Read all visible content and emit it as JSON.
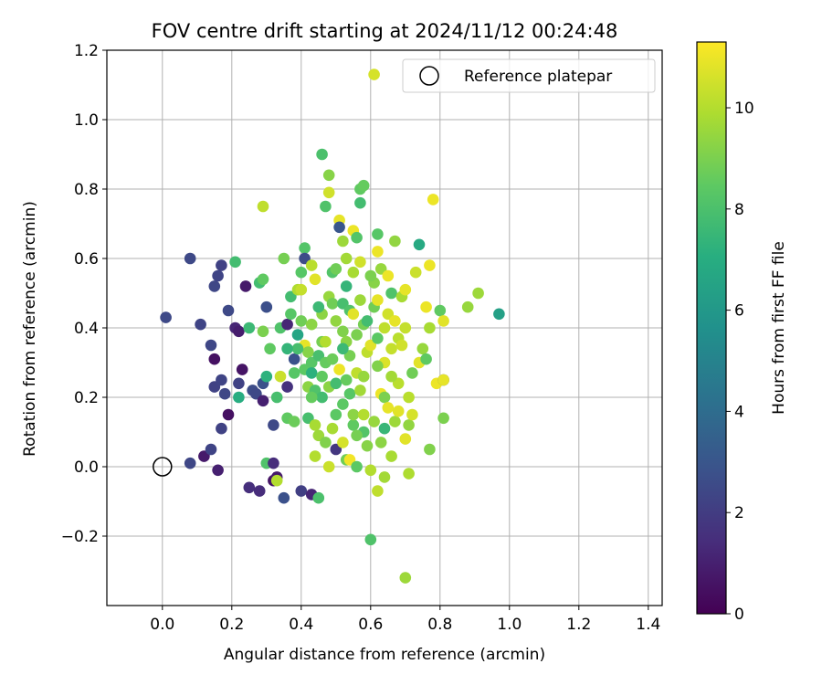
{
  "chart_data": {
    "type": "scatter",
    "title": "FOV centre drift starting at 2024/11/12 00:24:48",
    "xlabel": "Angular distance from reference (arcmin)",
    "ylabel": "Rotation from reference (arcmin)",
    "xlim": [
      -0.16,
      1.44
    ],
    "ylim": [
      -0.4,
      1.2
    ],
    "xticks": [
      0.0,
      0.2,
      0.4,
      0.6,
      0.8,
      1.0,
      1.2,
      1.4
    ],
    "xtick_labels": [
      "0.0",
      "0.2",
      "0.4",
      "0.6",
      "0.8",
      "1.0",
      "1.2",
      "1.4"
    ],
    "yticks": [
      -0.2,
      0.0,
      0.2,
      0.4,
      0.6,
      0.8,
      1.0,
      1.2
    ],
    "ytick_labels": [
      "−0.2",
      "0.0",
      "0.2",
      "0.4",
      "0.6",
      "0.8",
      "1.0",
      "1.2"
    ],
    "grid": true,
    "legend": {
      "position": "top-right",
      "entries": [
        "Reference platepar"
      ]
    },
    "reference_point": {
      "x": 0.0,
      "y": 0.0
    },
    "colorbar": {
      "label": "Hours from first FF file",
      "range": [
        0,
        11.3
      ],
      "ticks": [
        0,
        2,
        4,
        6,
        8,
        10
      ],
      "tick_labels": [
        "0",
        "2",
        "4",
        "6",
        "8",
        "10"
      ],
      "colormap": "viridis"
    },
    "points": [
      {
        "x": 0.01,
        "y": 0.43,
        "h": 2.5
      },
      {
        "x": 0.08,
        "y": 0.6,
        "h": 2.5
      },
      {
        "x": 0.11,
        "y": 0.41,
        "h": 2.3
      },
      {
        "x": 0.08,
        "y": 0.01,
        "h": 2.4
      },
      {
        "x": 0.12,
        "y": 0.03,
        "h": 0.8
      },
      {
        "x": 0.14,
        "y": 0.05,
        "h": 2.3
      },
      {
        "x": 0.16,
        "y": -0.01,
        "h": 1.0
      },
      {
        "x": 0.14,
        "y": 0.35,
        "h": 2.4
      },
      {
        "x": 0.15,
        "y": 0.31,
        "h": 0.5
      },
      {
        "x": 0.15,
        "y": 0.23,
        "h": 2.2
      },
      {
        "x": 0.17,
        "y": 0.25,
        "h": 2.3
      },
      {
        "x": 0.17,
        "y": 0.11,
        "h": 2.2
      },
      {
        "x": 0.15,
        "y": 0.52,
        "h": 2.4
      },
      {
        "x": 0.16,
        "y": 0.55,
        "h": 2.3
      },
      {
        "x": 0.17,
        "y": 0.58,
        "h": 2.2
      },
      {
        "x": 0.19,
        "y": 0.45,
        "h": 2.5
      },
      {
        "x": 0.18,
        "y": 0.21,
        "h": 2.4
      },
      {
        "x": 0.19,
        "y": 0.15,
        "h": 0.5
      },
      {
        "x": 0.21,
        "y": 0.4,
        "h": 1.2
      },
      {
        "x": 0.21,
        "y": 0.59,
        "h": 7.8
      },
      {
        "x": 0.22,
        "y": 0.24,
        "h": 2.2
      },
      {
        "x": 0.22,
        "y": 0.39,
        "h": 0.9
      },
      {
        "x": 0.23,
        "y": 0.28,
        "h": 0.6
      },
      {
        "x": 0.22,
        "y": 0.2,
        "h": 7.0
      },
      {
        "x": 0.24,
        "y": 0.52,
        "h": 0.8
      },
      {
        "x": 0.25,
        "y": 0.4,
        "h": 7.6
      },
      {
        "x": 0.26,
        "y": 0.22,
        "h": 2.6
      },
      {
        "x": 0.25,
        "y": -0.06,
        "h": 1.5
      },
      {
        "x": 0.27,
        "y": 0.21,
        "h": 2.5
      },
      {
        "x": 0.28,
        "y": 0.53,
        "h": 7.8
      },
      {
        "x": 0.28,
        "y": -0.07,
        "h": 1.4
      },
      {
        "x": 0.29,
        "y": 0.19,
        "h": 1.0
      },
      {
        "x": 0.29,
        "y": 0.24,
        "h": 2.8
      },
      {
        "x": 0.29,
        "y": 0.39,
        "h": 9.0
      },
      {
        "x": 0.29,
        "y": 0.54,
        "h": 8.5
      },
      {
        "x": 0.29,
        "y": 0.75,
        "h": 10.2
      },
      {
        "x": 0.3,
        "y": 0.46,
        "h": 2.7
      },
      {
        "x": 0.3,
        "y": 0.26,
        "h": 7.2
      },
      {
        "x": 0.3,
        "y": 0.01,
        "h": 8.1
      },
      {
        "x": 0.31,
        "y": 0.34,
        "h": 8.5
      },
      {
        "x": 0.32,
        "y": 0.12,
        "h": 2.5
      },
      {
        "x": 0.32,
        "y": 0.01,
        "h": 1.4
      },
      {
        "x": 0.32,
        "y": -0.04,
        "h": 0.6
      },
      {
        "x": 0.33,
        "y": -0.03,
        "h": 0.8
      },
      {
        "x": 0.33,
        "y": -0.04,
        "h": 10.0
      },
      {
        "x": 0.33,
        "y": 0.2,
        "h": 7.9
      },
      {
        "x": 0.34,
        "y": 0.26,
        "h": 10.4
      },
      {
        "x": 0.34,
        "y": 0.4,
        "h": 8.1
      },
      {
        "x": 0.35,
        "y": -0.09,
        "h": 2.8
      },
      {
        "x": 0.35,
        "y": 0.6,
        "h": 8.9
      },
      {
        "x": 0.36,
        "y": 0.41,
        "h": 1.2
      },
      {
        "x": 0.36,
        "y": 0.14,
        "h": 8.5
      },
      {
        "x": 0.36,
        "y": 0.23,
        "h": 1.6
      },
      {
        "x": 0.37,
        "y": 0.44,
        "h": 8.3
      },
      {
        "x": 0.37,
        "y": 0.49,
        "h": 7.8
      },
      {
        "x": 0.38,
        "y": 0.31,
        "h": 2.8
      },
      {
        "x": 0.38,
        "y": 0.27,
        "h": 8.3
      },
      {
        "x": 0.39,
        "y": 0.51,
        "h": 9.9
      },
      {
        "x": 0.39,
        "y": 0.38,
        "h": 6.6
      },
      {
        "x": 0.4,
        "y": 0.42,
        "h": 8.8
      },
      {
        "x": 0.4,
        "y": 0.56,
        "h": 8.3
      },
      {
        "x": 0.4,
        "y": 0.51,
        "h": 10.3
      },
      {
        "x": 0.4,
        "y": -0.07,
        "h": 2.1
      },
      {
        "x": 0.41,
        "y": 0.35,
        "h": 10.9
      },
      {
        "x": 0.41,
        "y": 0.63,
        "h": 8.2
      },
      {
        "x": 0.41,
        "y": 0.6,
        "h": 2.6
      },
      {
        "x": 0.41,
        "y": 0.28,
        "h": 8.4
      },
      {
        "x": 0.42,
        "y": 0.14,
        "h": 7.9
      },
      {
        "x": 0.42,
        "y": 0.23,
        "h": 9.3
      },
      {
        "x": 0.42,
        "y": 0.33,
        "h": 9.2
      },
      {
        "x": 0.43,
        "y": 0.3,
        "h": 8.3
      },
      {
        "x": 0.43,
        "y": -0.08,
        "h": 1.2
      },
      {
        "x": 0.43,
        "y": 0.58,
        "h": 10.1
      },
      {
        "x": 0.43,
        "y": 0.41,
        "h": 9.3
      },
      {
        "x": 0.43,
        "y": 0.27,
        "h": 7.2
      },
      {
        "x": 0.44,
        "y": 0.03,
        "h": 10.0
      },
      {
        "x": 0.44,
        "y": 0.12,
        "h": 9.8
      },
      {
        "x": 0.44,
        "y": 0.22,
        "h": 8.1
      },
      {
        "x": 0.44,
        "y": 0.54,
        "h": 10.8
      },
      {
        "x": 0.45,
        "y": 0.09,
        "h": 9.6
      },
      {
        "x": 0.45,
        "y": -0.09,
        "h": 8.0
      },
      {
        "x": 0.45,
        "y": 0.32,
        "h": 7.9
      },
      {
        "x": 0.46,
        "y": 0.2,
        "h": 7.8
      },
      {
        "x": 0.46,
        "y": 0.36,
        "h": 8.9
      },
      {
        "x": 0.46,
        "y": 0.44,
        "h": 9.3
      },
      {
        "x": 0.46,
        "y": 0.9,
        "h": 8.0
      },
      {
        "x": 0.47,
        "y": 0.75,
        "h": 8.1
      },
      {
        "x": 0.47,
        "y": 0.07,
        "h": 9.1
      },
      {
        "x": 0.47,
        "y": 0.3,
        "h": 8.6
      },
      {
        "x": 0.48,
        "y": 0.0,
        "h": 10.4
      },
      {
        "x": 0.48,
        "y": 0.23,
        "h": 9.3
      },
      {
        "x": 0.48,
        "y": 0.49,
        "h": 9.5
      },
      {
        "x": 0.48,
        "y": 0.84,
        "h": 9.2
      },
      {
        "x": 0.48,
        "y": 0.79,
        "h": 10.5
      },
      {
        "x": 0.49,
        "y": 0.31,
        "h": 8.7
      },
      {
        "x": 0.49,
        "y": 0.56,
        "h": 8.2
      },
      {
        "x": 0.49,
        "y": 0.47,
        "h": 8.8
      },
      {
        "x": 0.5,
        "y": 0.42,
        "h": 9.4
      },
      {
        "x": 0.5,
        "y": 0.15,
        "h": 8.4
      },
      {
        "x": 0.5,
        "y": 0.24,
        "h": 7.8
      },
      {
        "x": 0.5,
        "y": 0.05,
        "h": 1.8
      },
      {
        "x": 0.51,
        "y": 0.71,
        "h": 10.9
      },
      {
        "x": 0.51,
        "y": 0.28,
        "h": 11.0
      },
      {
        "x": 0.51,
        "y": 0.69,
        "h": 3.0
      },
      {
        "x": 0.52,
        "y": 0.65,
        "h": 9.6
      },
      {
        "x": 0.52,
        "y": 0.47,
        "h": 7.9
      },
      {
        "x": 0.52,
        "y": 0.39,
        "h": 9.1
      },
      {
        "x": 0.52,
        "y": 0.18,
        "h": 8.4
      },
      {
        "x": 0.52,
        "y": 0.07,
        "h": 10.6
      },
      {
        "x": 0.53,
        "y": 0.36,
        "h": 9.3
      },
      {
        "x": 0.53,
        "y": 0.25,
        "h": 8.6
      },
      {
        "x": 0.53,
        "y": 0.02,
        "h": 8.8
      },
      {
        "x": 0.53,
        "y": 0.6,
        "h": 9.7
      },
      {
        "x": 0.54,
        "y": 0.45,
        "h": 8.1
      },
      {
        "x": 0.54,
        "y": 0.32,
        "h": 8.9
      },
      {
        "x": 0.54,
        "y": 0.21,
        "h": 8.3
      },
      {
        "x": 0.54,
        "y": 0.02,
        "h": 11.1
      },
      {
        "x": 0.55,
        "y": 0.68,
        "h": 11.0
      },
      {
        "x": 0.55,
        "y": 0.56,
        "h": 9.8
      },
      {
        "x": 0.55,
        "y": 0.44,
        "h": 10.8
      },
      {
        "x": 0.55,
        "y": 0.12,
        "h": 8.5
      },
      {
        "x": 0.56,
        "y": 0.66,
        "h": 8.2
      },
      {
        "x": 0.56,
        "y": 0.38,
        "h": 9.0
      },
      {
        "x": 0.56,
        "y": 0.27,
        "h": 10.2
      },
      {
        "x": 0.56,
        "y": 0.0,
        "h": 8.4
      },
      {
        "x": 0.57,
        "y": 0.8,
        "h": 8.5
      },
      {
        "x": 0.57,
        "y": 0.76,
        "h": 7.8
      },
      {
        "x": 0.57,
        "y": 0.48,
        "h": 9.6
      },
      {
        "x": 0.57,
        "y": 0.22,
        "h": 9.7
      },
      {
        "x": 0.58,
        "y": 0.81,
        "h": 8.6
      },
      {
        "x": 0.58,
        "y": 0.41,
        "h": 8.9
      },
      {
        "x": 0.58,
        "y": 0.26,
        "h": 9.5
      },
      {
        "x": 0.58,
        "y": 0.1,
        "h": 8.2
      },
      {
        "x": 0.59,
        "y": 0.33,
        "h": 10.2
      },
      {
        "x": 0.59,
        "y": 0.06,
        "h": 9.2
      },
      {
        "x": 0.6,
        "y": -0.21,
        "h": 8.1
      },
      {
        "x": 0.6,
        "y": -0.01,
        "h": 10.0
      },
      {
        "x": 0.6,
        "y": 0.35,
        "h": 10.8
      },
      {
        "x": 0.61,
        "y": 1.13,
        "h": 10.6
      },
      {
        "x": 0.61,
        "y": 0.53,
        "h": 9.2
      },
      {
        "x": 0.61,
        "y": 0.46,
        "h": 8.8
      },
      {
        "x": 0.61,
        "y": 0.13,
        "h": 9.5
      },
      {
        "x": 0.62,
        "y": 0.67,
        "h": 8.3
      },
      {
        "x": 0.62,
        "y": 0.62,
        "h": 11.0
      },
      {
        "x": 0.62,
        "y": 0.37,
        "h": 8.4
      },
      {
        "x": 0.62,
        "y": 0.48,
        "h": 10.9
      },
      {
        "x": 0.62,
        "y": -0.07,
        "h": 10.2
      },
      {
        "x": 0.63,
        "y": 0.21,
        "h": 11.0
      },
      {
        "x": 0.63,
        "y": 0.57,
        "h": 9.5
      },
      {
        "x": 0.63,
        "y": 0.07,
        "h": 9.3
      },
      {
        "x": 0.64,
        "y": 0.4,
        "h": 10.2
      },
      {
        "x": 0.64,
        "y": 0.3,
        "h": 10.7
      },
      {
        "x": 0.64,
        "y": 0.2,
        "h": 9.0
      },
      {
        "x": 0.64,
        "y": -0.03,
        "h": 9.7
      },
      {
        "x": 0.65,
        "y": 0.55,
        "h": 11.0
      },
      {
        "x": 0.65,
        "y": 0.44,
        "h": 10.5
      },
      {
        "x": 0.65,
        "y": 0.17,
        "h": 10.9
      },
      {
        "x": 0.66,
        "y": 0.5,
        "h": 8.1
      },
      {
        "x": 0.66,
        "y": 0.34,
        "h": 10.3
      },
      {
        "x": 0.66,
        "y": 0.03,
        "h": 9.8
      },
      {
        "x": 0.67,
        "y": 0.65,
        "h": 9.4
      },
      {
        "x": 0.67,
        "y": 0.42,
        "h": 10.9
      },
      {
        "x": 0.67,
        "y": 0.13,
        "h": 9.6
      },
      {
        "x": 0.68,
        "y": 0.24,
        "h": 10.1
      },
      {
        "x": 0.68,
        "y": 0.16,
        "h": 10.8
      },
      {
        "x": 0.68,
        "y": 0.37,
        "h": 10.1
      },
      {
        "x": 0.69,
        "y": 0.49,
        "h": 9.8
      },
      {
        "x": 0.69,
        "y": 0.35,
        "h": 10.5
      },
      {
        "x": 0.7,
        "y": -0.32,
        "h": 9.6
      },
      {
        "x": 0.7,
        "y": 0.51,
        "h": 10.9
      },
      {
        "x": 0.7,
        "y": 0.08,
        "h": 10.8
      },
      {
        "x": 0.7,
        "y": 0.4,
        "h": 10.3
      },
      {
        "x": 0.71,
        "y": 0.2,
        "h": 10.1
      },
      {
        "x": 0.71,
        "y": -0.02,
        "h": 9.9
      },
      {
        "x": 0.71,
        "y": 0.12,
        "h": 9.4
      },
      {
        "x": 0.72,
        "y": 0.27,
        "h": 8.8
      },
      {
        "x": 0.73,
        "y": 0.56,
        "h": 10.4
      },
      {
        "x": 0.74,
        "y": 0.64,
        "h": 6.8
      },
      {
        "x": 0.74,
        "y": 0.3,
        "h": 10.8
      },
      {
        "x": 0.75,
        "y": 0.34,
        "h": 9.5
      },
      {
        "x": 0.76,
        "y": 0.46,
        "h": 11.0
      },
      {
        "x": 0.76,
        "y": 0.31,
        "h": 8.5
      },
      {
        "x": 0.77,
        "y": 0.58,
        "h": 11.0
      },
      {
        "x": 0.77,
        "y": 0.4,
        "h": 9.8
      },
      {
        "x": 0.77,
        "y": 0.05,
        "h": 9.1
      },
      {
        "x": 0.78,
        "y": 0.77,
        "h": 11.0
      },
      {
        "x": 0.79,
        "y": 0.24,
        "h": 11.0
      },
      {
        "x": 0.8,
        "y": 0.45,
        "h": 8.5
      },
      {
        "x": 0.81,
        "y": 0.42,
        "h": 10.8
      },
      {
        "x": 0.81,
        "y": 0.14,
        "h": 9.0
      },
      {
        "x": 0.81,
        "y": 0.25,
        "h": 2.8
      },
      {
        "x": 0.81,
        "y": 0.25,
        "h": 10.9
      },
      {
        "x": 0.88,
        "y": 0.46,
        "h": 9.5
      },
      {
        "x": 0.91,
        "y": 0.5,
        "h": 9.6
      },
      {
        "x": 0.97,
        "y": 0.44,
        "h": 6.4
      },
      {
        "x": 0.5,
        "y": 0.57,
        "h": 8.8
      },
      {
        "x": 0.45,
        "y": 0.46,
        "h": 7.6
      },
      {
        "x": 0.39,
        "y": 0.34,
        "h": 7.9
      },
      {
        "x": 0.57,
        "y": 0.59,
        "h": 10.5
      },
      {
        "x": 0.6,
        "y": 0.55,
        "h": 9.0
      },
      {
        "x": 0.53,
        "y": 0.52,
        "h": 7.4
      },
      {
        "x": 0.47,
        "y": 0.36,
        "h": 10.0
      },
      {
        "x": 0.59,
        "y": 0.42,
        "h": 7.8
      },
      {
        "x": 0.66,
        "y": 0.26,
        "h": 9.7
      },
      {
        "x": 0.55,
        "y": 0.15,
        "h": 9.3
      },
      {
        "x": 0.43,
        "y": 0.2,
        "h": 8.6
      },
      {
        "x": 0.49,
        "y": 0.11,
        "h": 9.8
      },
      {
        "x": 0.56,
        "y": 0.09,
        "h": 8.9
      },
      {
        "x": 0.62,
        "y": 0.29,
        "h": 9.1
      },
      {
        "x": 0.72,
        "y": 0.15,
        "h": 10.6
      },
      {
        "x": 0.38,
        "y": 0.13,
        "h": 8.7
      },
      {
        "x": 0.36,
        "y": 0.34,
        "h": 7.4
      },
      {
        "x": 0.52,
        "y": 0.34,
        "h": 7.6
      },
      {
        "x": 0.58,
        "y": 0.15,
        "h": 10.0
      },
      {
        "x": 0.64,
        "y": 0.11,
        "h": 7.5
      },
      {
        "x": 0.46,
        "y": 0.26,
        "h": 8.5
      }
    ]
  }
}
